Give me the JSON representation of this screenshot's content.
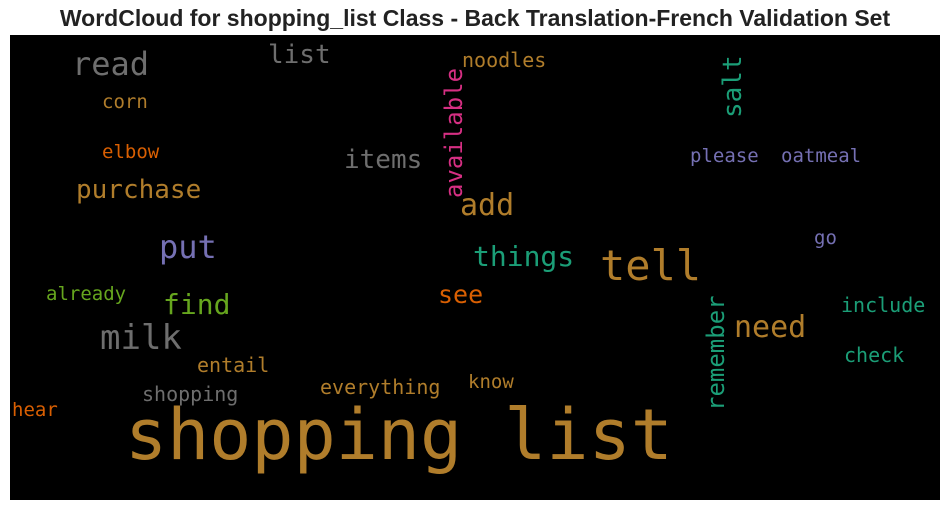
{
  "chart_data": {
    "type": "wordcloud",
    "title": "WordCloud for shopping_list Class - Back Translation-French Validation Set",
    "words": [
      {
        "text": "shopping list",
        "color": "#b07d2b"
      },
      {
        "text": "tell",
        "color": "#b07d2b"
      },
      {
        "text": "read",
        "color": "#6e6e6e"
      },
      {
        "text": "list",
        "color": "#6e6e6e"
      },
      {
        "text": "available",
        "color": "#d62f83"
      },
      {
        "text": "noodles",
        "color": "#b07d2b"
      },
      {
        "text": "salt",
        "color": "#1b9e77"
      },
      {
        "text": "corn",
        "color": "#b07d2b"
      },
      {
        "text": "elbow",
        "color": "#d95f02"
      },
      {
        "text": "items",
        "color": "#6e6e6e"
      },
      {
        "text": "please",
        "color": "#7570b3"
      },
      {
        "text": "oatmeal",
        "color": "#7570b3"
      },
      {
        "text": "purchase",
        "color": "#b07d2b"
      },
      {
        "text": "add",
        "color": "#b07d2b"
      },
      {
        "text": "put",
        "color": "#7570b3"
      },
      {
        "text": "things",
        "color": "#1b9e77"
      },
      {
        "text": "go",
        "color": "#7570b3"
      },
      {
        "text": "already",
        "color": "#66a61e"
      },
      {
        "text": "find",
        "color": "#66a61e"
      },
      {
        "text": "see",
        "color": "#d95f02"
      },
      {
        "text": "remember",
        "color": "#1b9e77"
      },
      {
        "text": "need",
        "color": "#b07d2b"
      },
      {
        "text": "include",
        "color": "#1b9e77"
      },
      {
        "text": "milk",
        "color": "#6e6e6e"
      },
      {
        "text": "check",
        "color": "#1b9e77"
      },
      {
        "text": "entail",
        "color": "#b07d2b"
      },
      {
        "text": "everything",
        "color": "#b07d2b"
      },
      {
        "text": "know",
        "color": "#b07d2b"
      },
      {
        "text": "shopping",
        "color": "#6e6e6e"
      },
      {
        "text": "hear",
        "color": "#d95f02"
      }
    ],
    "background": "#000000"
  }
}
